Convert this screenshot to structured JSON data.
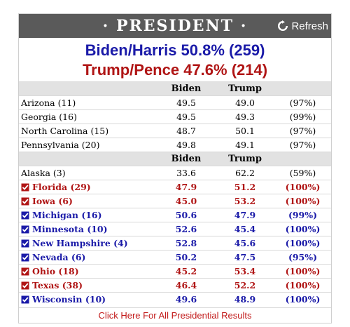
{
  "header": {
    "title": "· PRESIDENT ·",
    "refresh_label": "Refresh"
  },
  "summary": {
    "dem": "Biden/Harris 50.8% (259)",
    "rep": "Trump/Pence 47.6% (214)"
  },
  "columns": {
    "blank": "",
    "biden": "Biden",
    "trump": "Trump"
  },
  "colors": {
    "dem": "#1a1aa8",
    "rep": "#b01515",
    "header": "#5a5a5a"
  },
  "pending": [
    {
      "state": "Arizona (11)",
      "biden": "49.5",
      "trump": "49.0",
      "reporting": "(97%)"
    },
    {
      "state": "Georgia (16)",
      "biden": "49.5",
      "trump": "49.3",
      "reporting": "(99%)"
    },
    {
      "state": "North Carolina (15)",
      "biden": "48.7",
      "trump": "50.1",
      "reporting": "(97%)"
    },
    {
      "state": "Pennsylvania (20)",
      "biden": "49.8",
      "trump": "49.1",
      "reporting": "(97%)"
    }
  ],
  "called": [
    {
      "state": "Alaska (3)",
      "biden": "33.6",
      "trump": "62.2",
      "reporting": "(59%)",
      "winner": ""
    },
    {
      "state": "Florida (29)",
      "biden": "47.9",
      "trump": "51.2",
      "reporting": "(100%)",
      "winner": "rep"
    },
    {
      "state": "Iowa (6)",
      "biden": "45.0",
      "trump": "53.2",
      "reporting": "(100%)",
      "winner": "rep"
    },
    {
      "state": "Michigan (16)",
      "biden": "50.6",
      "trump": "47.9",
      "reporting": "(99%)",
      "winner": "dem"
    },
    {
      "state": "Minnesota (10)",
      "biden": "52.6",
      "trump": "45.4",
      "reporting": "(100%)",
      "winner": "dem"
    },
    {
      "state": "New Hampshire (4)",
      "biden": "52.8",
      "trump": "45.6",
      "reporting": "(100%)",
      "winner": "dem"
    },
    {
      "state": "Nevada (6)",
      "biden": "50.2",
      "trump": "47.5",
      "reporting": "(95%)",
      "winner": "dem"
    },
    {
      "state": "Ohio (18)",
      "biden": "45.2",
      "trump": "53.4",
      "reporting": "(100%)",
      "winner": "rep"
    },
    {
      "state": "Texas (38)",
      "biden": "46.4",
      "trump": "52.2",
      "reporting": "(100%)",
      "winner": "rep"
    },
    {
      "state": "Wisconsin (10)",
      "biden": "49.6",
      "trump": "48.9",
      "reporting": "(100%)",
      "winner": "dem"
    }
  ],
  "footer": {
    "link": "Click Here For All Presidential Results"
  }
}
